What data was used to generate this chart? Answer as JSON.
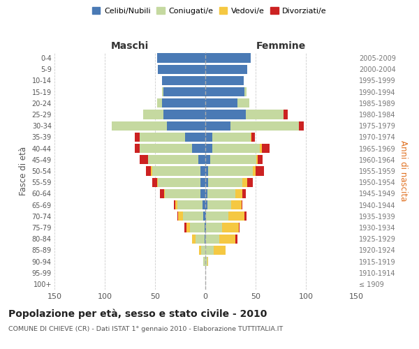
{
  "age_groups": [
    "100+",
    "95-99",
    "90-94",
    "85-89",
    "80-84",
    "75-79",
    "70-74",
    "65-69",
    "60-64",
    "55-59",
    "50-54",
    "45-49",
    "40-44",
    "35-39",
    "30-34",
    "25-29",
    "20-24",
    "15-19",
    "10-14",
    "5-9",
    "0-4"
  ],
  "birth_years": [
    "≤ 1909",
    "1910-1914",
    "1915-1919",
    "1920-1924",
    "1925-1929",
    "1930-1934",
    "1935-1939",
    "1940-1944",
    "1945-1949",
    "1950-1954",
    "1955-1959",
    "1960-1964",
    "1965-1969",
    "1970-1974",
    "1975-1979",
    "1980-1984",
    "1985-1989",
    "1990-1994",
    "1995-1999",
    "2000-2004",
    "2005-2009"
  ],
  "male": {
    "celibi": [
      0,
      0,
      0,
      0,
      1,
      1,
      2,
      3,
      5,
      5,
      5,
      7,
      13,
      20,
      38,
      42,
      43,
      42,
      43,
      47,
      48
    ],
    "coniugati": [
      0,
      0,
      2,
      4,
      9,
      14,
      20,
      25,
      35,
      42,
      48,
      50,
      52,
      45,
      55,
      20,
      5,
      1,
      0,
      0,
      0
    ],
    "vedovi": [
      0,
      0,
      0,
      2,
      3,
      4,
      5,
      2,
      1,
      1,
      1,
      0,
      0,
      0,
      0,
      0,
      0,
      0,
      0,
      0,
      0
    ],
    "divorziati": [
      0,
      0,
      0,
      0,
      0,
      2,
      1,
      1,
      4,
      5,
      5,
      8,
      5,
      5,
      0,
      0,
      0,
      0,
      0,
      0,
      0
    ]
  },
  "female": {
    "nubili": [
      0,
      0,
      0,
      0,
      0,
      1,
      1,
      2,
      2,
      3,
      3,
      5,
      7,
      7,
      25,
      40,
      32,
      39,
      38,
      42,
      45
    ],
    "coniugate": [
      0,
      0,
      2,
      8,
      14,
      16,
      22,
      24,
      28,
      34,
      44,
      46,
      47,
      38,
      68,
      38,
      12,
      2,
      0,
      0,
      0
    ],
    "vedove": [
      0,
      0,
      1,
      12,
      16,
      16,
      16,
      10,
      7,
      5,
      3,
      1,
      2,
      1,
      0,
      0,
      0,
      0,
      0,
      0,
      0
    ],
    "divorziate": [
      0,
      0,
      0,
      0,
      2,
      1,
      2,
      1,
      3,
      5,
      8,
      5,
      8,
      3,
      5,
      4,
      0,
      0,
      0,
      0,
      0
    ]
  },
  "colors": {
    "celibi": "#4a7ab5",
    "coniugati": "#c5d9a0",
    "vedovi": "#f5c842",
    "divorziati": "#cc2222"
  },
  "title": "Popolazione per età, sesso e stato civile - 2010",
  "subtitle": "COMUNE DI CHIEVE (CR) - Dati ISTAT 1° gennaio 2010 - Elaborazione TUTTITALIA.IT",
  "ylabel_left": "Fasce di età",
  "ylabel_right": "Anni di nascita",
  "xlabel_left": "Maschi",
  "xlabel_right": "Femmine",
  "xlim": 150,
  "bg_color": "#ffffff",
  "grid_color": "#cccccc"
}
